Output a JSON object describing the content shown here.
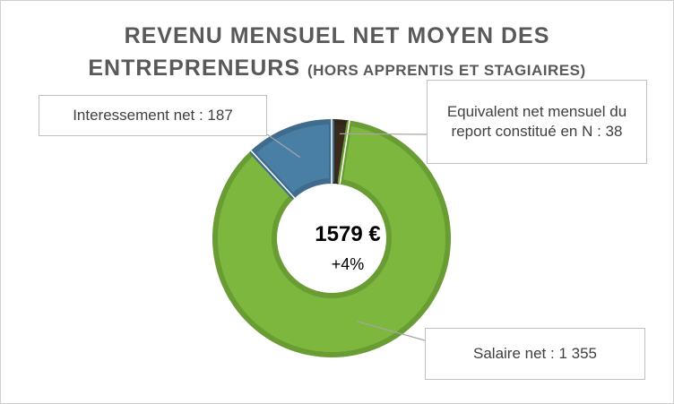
{
  "chart_data": {
    "type": "pie",
    "title_line1": "REVENU MENSUEL NET MOYEN DES",
    "title_line2_main": "ENTREPRENEURS",
    "title_line2_sub": "(HORS APPRENTIS ET STAGIAIRES)",
    "center_total": "1579 €",
    "center_change": "+4%",
    "slices": [
      {
        "name": "Equivalent net mensuel du report constitué en N",
        "value": 38,
        "label": "Equivalent net mensuel du report constitué en N : 38",
        "color": "#3a2a1c"
      },
      {
        "name": "Salaire net",
        "value": 1355,
        "label": "Salaire net : 1 355",
        "color": "#7db73d"
      },
      {
        "name": "Interessement net",
        "value": 187,
        "label": "Interessement net :   187",
        "color": "#4a7fa5"
      }
    ]
  }
}
